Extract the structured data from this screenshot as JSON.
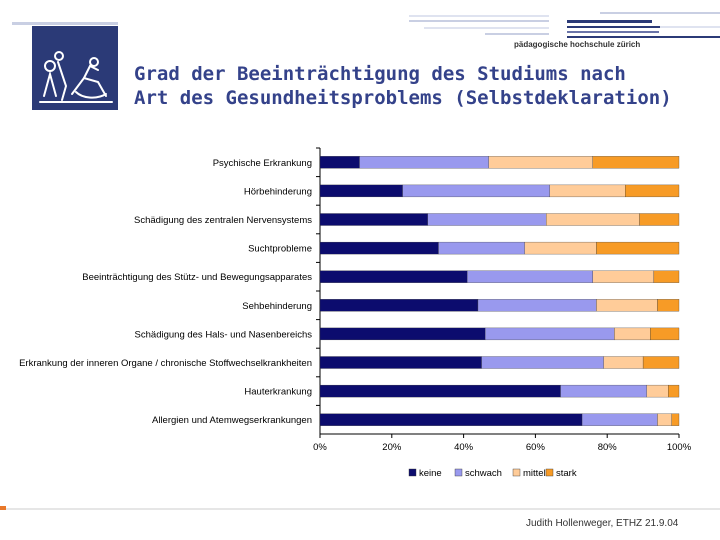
{
  "header": {
    "brand": "pädagogische hochschule zürich",
    "title_line1": "Grad der Beeinträchtigung des Studiums nach",
    "title_line2": "Art des Gesundheitsproblems (Selbstdeklaration)"
  },
  "footer": {
    "author": "Judith Hollenweger, ETHZ",
    "date": "21.9.04"
  },
  "chart_data": {
    "type": "bar",
    "orientation": "horizontal",
    "stacked": true,
    "percent": true,
    "categories": [
      "Psychische Erkrankung",
      "Hörbehinderung",
      "Schädigung des zentralen Nervensystems",
      "Suchtprobleme",
      "Beeinträchtigung des Stütz- und Bewegungsapparates",
      "Sehbehinderung",
      "Schädigung des Hals- und Nasenbereichs",
      "Erkrankung der inneren Organe / chronische Stoffwechselkrankheiten",
      "Hauterkrankung",
      "Allergien und Atemwegserkrankungen"
    ],
    "series": [
      {
        "name": "keine",
        "color": "#0c0c6e",
        "values": [
          11,
          23,
          30,
          33,
          41,
          44,
          46,
          45,
          67,
          73
        ]
      },
      {
        "name": "schwach",
        "color": "#9999ee",
        "values": [
          36,
          41,
          33,
          24,
          35,
          33,
          36,
          34,
          24,
          21
        ]
      },
      {
        "name": "mittel",
        "color": "#ffcc99",
        "values": [
          29,
          21,
          26,
          20,
          17,
          17,
          10,
          11,
          6,
          4
        ]
      },
      {
        "name": "stark",
        "color": "#f79b26",
        "values": [
          24,
          15,
          11,
          23,
          7,
          6,
          8,
          10,
          3,
          2
        ]
      }
    ],
    "xticks": [
      "0%",
      "20%",
      "40%",
      "60%",
      "80%",
      "100%"
    ],
    "xlim": [
      0,
      100
    ],
    "legend_position": "bottom"
  }
}
